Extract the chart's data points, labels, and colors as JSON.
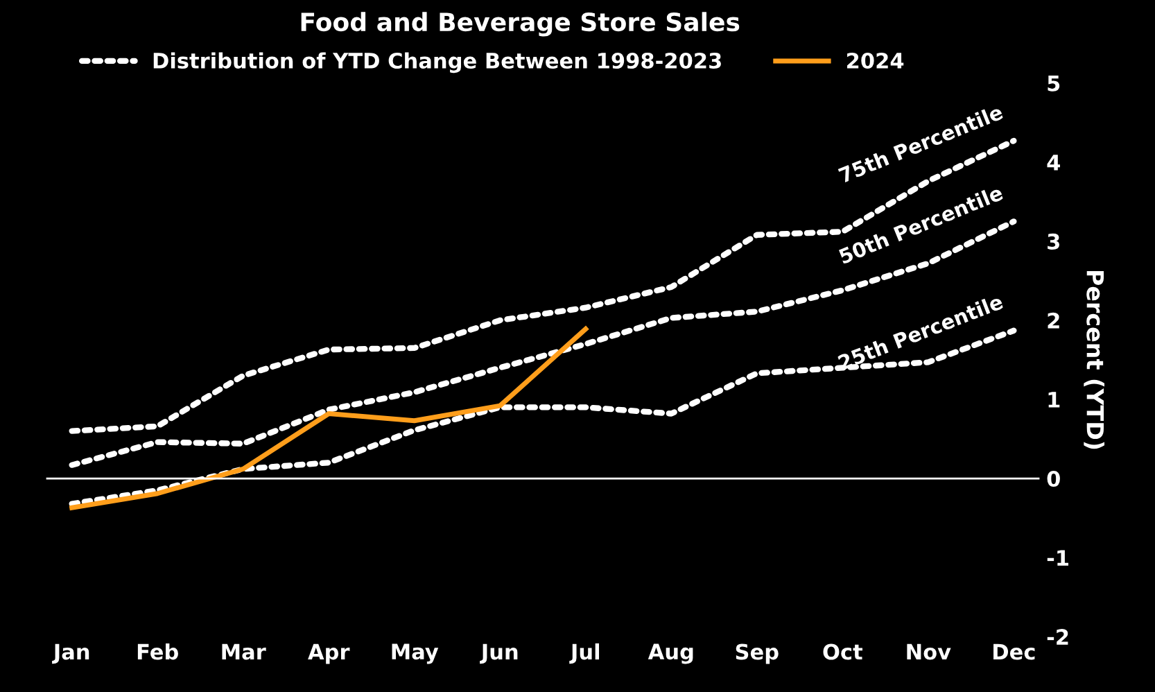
{
  "chart_data": {
    "type": "line",
    "title": "Food and Beverage Store Sales",
    "ylabel": "Percent (YTD)",
    "legend_title": "Distribution of YTD Change Between 1998-2023",
    "categories": [
      "Jan",
      "Feb",
      "Mar",
      "Apr",
      "May",
      "Jun",
      "Jul",
      "Aug",
      "Sep",
      "Oct",
      "Nov",
      "Dec"
    ],
    "series": [
      {
        "name": "75th Percentile",
        "color": "#ffffff",
        "line_style": "dotted",
        "values": [
          0.6,
          0.66,
          1.3,
          1.63,
          1.65,
          2.0,
          2.16,
          2.42,
          3.08,
          3.12,
          3.76,
          4.27
        ]
      },
      {
        "name": "50th Percentile",
        "color": "#ffffff",
        "line_style": "dotted",
        "values": [
          0.17,
          0.46,
          0.44,
          0.87,
          1.09,
          1.4,
          1.7,
          2.03,
          2.11,
          2.38,
          2.72,
          3.25
        ]
      },
      {
        "name": "25th Percentile",
        "color": "#ffffff",
        "line_style": "dotted",
        "values": [
          -0.32,
          -0.15,
          0.12,
          0.2,
          0.61,
          0.9,
          0.9,
          0.82,
          1.33,
          1.4,
          1.47,
          1.87
        ]
      },
      {
        "name": "2024",
        "color": "#ff9e1b",
        "line_style": "solid",
        "values": [
          -0.37,
          -0.19,
          0.12,
          0.82,
          0.73,
          0.92,
          1.89,
          null,
          null,
          null,
          null,
          null
        ]
      }
    ],
    "ylim": [
      -2,
      5
    ],
    "yticks": [
      -2,
      -1,
      0,
      1,
      2,
      3,
      4,
      5
    ],
    "ref_lines": [
      {
        "axis": "y",
        "value": 0,
        "color": "#ffffff"
      }
    ],
    "legend": "top",
    "grid": false,
    "marker": "none"
  }
}
